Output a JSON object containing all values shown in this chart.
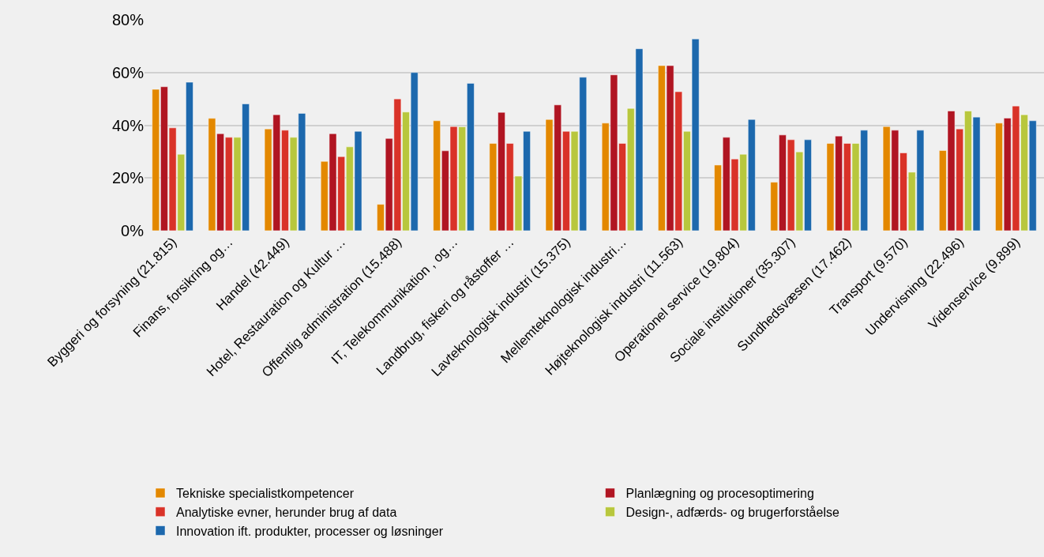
{
  "chart_data": {
    "type": "bar",
    "categories": [
      "Byggeri og forsyning (21.815)",
      "Finans, forsikring og…",
      "Handel (42.449)",
      "Hotel, Restauration og Kultur …",
      "Offentlig administration (15.488)",
      "IT, Telekommunikation , og…",
      "Landbrug, fiskeri og råstoffer …",
      "Lavteknologisk industri (15.375)",
      "Mellemteknologisk industri…",
      "Højteknologisk industri (11.563)",
      "Operationel service (19.804)",
      "Sociale institutioner (35.307)",
      "Sundhedsvæsen (17.462)",
      "Transport (9.570)",
      "Undervisning (22.496)",
      "Videnservice (9.899)"
    ],
    "series": [
      {
        "name": "Tekniske specialistkompetencer",
        "color": "#e38800",
        "values": [
          53.6,
          42.6,
          38.6,
          26.3,
          10.0,
          41.7,
          33.1,
          42.2,
          40.8,
          62.6,
          24.9,
          18.4,
          33.1,
          39.5,
          30.4,
          40.8
        ]
      },
      {
        "name": "Planlægning og procesoptimering",
        "color": "#b01522",
        "values": [
          54.6,
          36.8,
          44.0,
          36.8,
          35.0,
          30.3,
          44.9,
          47.7,
          59.1,
          62.6,
          35.4,
          36.3,
          35.9,
          38.1,
          45.4,
          42.7
        ]
      },
      {
        "name": "Analytiske evner, herunder brug af data",
        "color": "#d93228",
        "values": [
          39.0,
          35.4,
          38.1,
          28.1,
          50.0,
          39.5,
          33.1,
          37.7,
          33.1,
          52.7,
          27.2,
          34.5,
          33.1,
          29.5,
          38.6,
          47.3
        ]
      },
      {
        "name": "Design-, adfærds- og brugerforståelse",
        "color": "#b8c73d",
        "values": [
          29.0,
          35.4,
          35.4,
          31.8,
          45.0,
          39.4,
          20.7,
          37.7,
          46.4,
          37.7,
          29.0,
          29.9,
          33.1,
          22.2,
          45.4,
          44.0
        ]
      },
      {
        "name": "Innovation ift. produkter, processer og løsninger",
        "color": "#1c68ad",
        "values": [
          56.3,
          48.1,
          44.5,
          37.7,
          60.0,
          55.9,
          37.7,
          58.2,
          69.0,
          72.7,
          42.2,
          34.5,
          38.1,
          38.1,
          43.1,
          41.7
        ]
      }
    ],
    "ylim": [
      0,
      80
    ],
    "yticks": [
      {
        "value": 0,
        "label": "0%"
      },
      {
        "value": 20,
        "label": "20%"
      },
      {
        "value": 40,
        "label": "40%"
      },
      {
        "value": 60,
        "label": "60%"
      },
      {
        "value": 80,
        "label": "80%"
      }
    ],
    "grid": "y",
    "legend": "bottom"
  }
}
